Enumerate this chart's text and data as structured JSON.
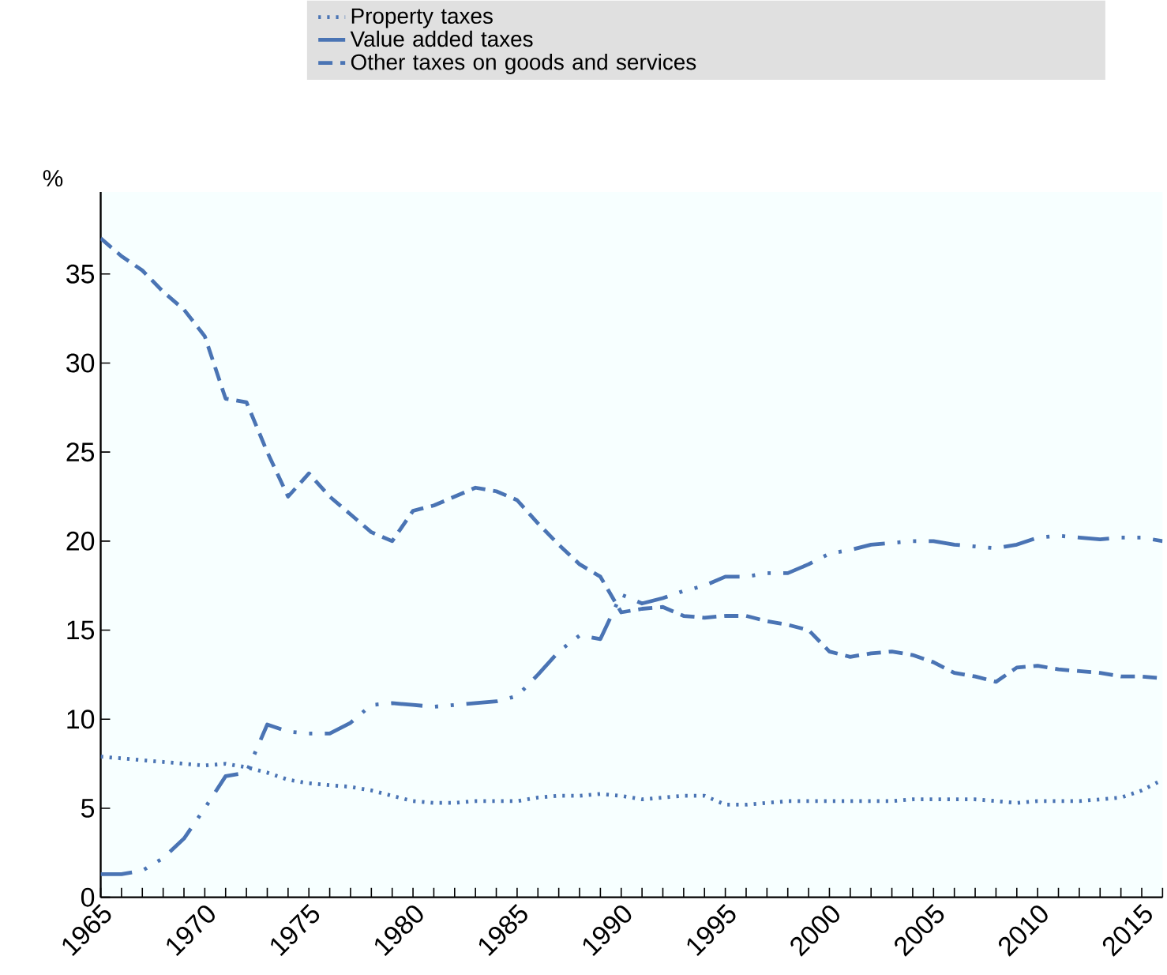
{
  "chart_data": {
    "type": "line",
    "ylabel": "%",
    "x": [
      1965,
      1966,
      1967,
      1968,
      1969,
      1970,
      1971,
      1972,
      1973,
      1974,
      1975,
      1976,
      1977,
      1978,
      1979,
      1980,
      1981,
      1982,
      1983,
      1984,
      1985,
      1986,
      1987,
      1988,
      1989,
      1990,
      1991,
      1992,
      1993,
      1994,
      1995,
      1996,
      1997,
      1998,
      1999,
      2000,
      2001,
      2002,
      2003,
      2004,
      2005,
      2006,
      2007,
      2008,
      2009,
      2010,
      2011,
      2012,
      2013,
      2014,
      2015,
      2016
    ],
    "series": [
      {
        "name": "Property taxes",
        "color": "#4a74b4",
        "line_style": "dotted",
        "values": [
          7.9,
          7.8,
          7.7,
          7.6,
          7.5,
          7.4,
          7.5,
          7.3,
          7.0,
          6.6,
          6.4,
          6.3,
          6.2,
          6.0,
          5.7,
          5.4,
          5.3,
          5.3,
          5.4,
          5.4,
          5.4,
          5.6,
          5.7,
          5.7,
          5.8,
          5.7,
          5.5,
          5.6,
          5.7,
          5.7,
          5.2,
          5.2,
          5.3,
          5.4,
          5.4,
          5.4,
          5.4,
          5.4,
          5.4,
          5.5,
          5.5,
          5.5,
          5.5,
          5.4,
          5.3,
          5.4,
          5.4,
          5.4,
          5.5,
          5.6,
          6.0,
          6.6
        ]
      },
      {
        "name": "Value added taxes",
        "color": "#4a74b4",
        "line_style": "dashdot",
        "values": [
          1.3,
          1.3,
          1.5,
          2.2,
          3.3,
          5.0,
          6.8,
          7.0,
          9.7,
          9.3,
          9.2,
          9.2,
          9.8,
          10.8,
          10.9,
          10.8,
          10.7,
          10.8,
          10.9,
          11.0,
          11.3,
          12.5,
          13.8,
          14.7,
          14.5,
          17.0,
          16.5,
          16.8,
          17.2,
          17.5,
          18.0,
          18.0,
          18.2,
          18.2,
          18.7,
          19.3,
          19.5,
          19.8,
          19.9,
          20.0,
          20.0,
          19.8,
          19.7,
          19.6,
          19.8,
          20.2,
          20.3,
          20.2,
          20.1,
          20.2,
          20.2,
          20.0
        ]
      },
      {
        "name": "Other taxes on goods and services",
        "color": "#4a74b4",
        "line_style": "dashed",
        "values": [
          37.0,
          36.0,
          35.2,
          34.0,
          33.0,
          31.5,
          28.0,
          27.8,
          25.0,
          22.5,
          23.8,
          22.5,
          21.5,
          20.5,
          20.0,
          21.7,
          22.0,
          22.5,
          23.0,
          22.8,
          22.3,
          21.0,
          19.8,
          18.7,
          18.0,
          16.0,
          16.2,
          16.3,
          15.8,
          15.7,
          15.8,
          15.8,
          15.5,
          15.3,
          15.0,
          13.8,
          13.5,
          13.7,
          13.8,
          13.6,
          13.2,
          12.6,
          12.4,
          12.1,
          12.9,
          13.0,
          12.8,
          12.7,
          12.6,
          12.4,
          12.4,
          12.3
        ]
      }
    ],
    "xlim": [
      1965,
      2016
    ],
    "ylim": [
      0,
      39.6
    ],
    "xticks": [
      {
        "value": 1965,
        "label": "1965"
      },
      {
        "value": 1966,
        "label": null
      },
      {
        "value": 1967,
        "label": null
      },
      {
        "value": 1968,
        "label": null
      },
      {
        "value": 1969,
        "label": null
      },
      {
        "value": 1970,
        "label": "1970"
      },
      {
        "value": 1971,
        "label": null
      },
      {
        "value": 1972,
        "label": null
      },
      {
        "value": 1973,
        "label": null
      },
      {
        "value": 1974,
        "label": null
      },
      {
        "value": 1975,
        "label": "1975"
      },
      {
        "value": 1976,
        "label": null
      },
      {
        "value": 1977,
        "label": null
      },
      {
        "value": 1978,
        "label": null
      },
      {
        "value": 1979,
        "label": null
      },
      {
        "value": 1980,
        "label": "1980"
      },
      {
        "value": 1981,
        "label": null
      },
      {
        "value": 1982,
        "label": null
      },
      {
        "value": 1983,
        "label": null
      },
      {
        "value": 1984,
        "label": null
      },
      {
        "value": 1985,
        "label": "1985"
      },
      {
        "value": 1986,
        "label": null
      },
      {
        "value": 1987,
        "label": null
      },
      {
        "value": 1988,
        "label": null
      },
      {
        "value": 1989,
        "label": null
      },
      {
        "value": 1990,
        "label": "1990"
      },
      {
        "value": 1991,
        "label": null
      },
      {
        "value": 1992,
        "label": null
      },
      {
        "value": 1993,
        "label": null
      },
      {
        "value": 1994,
        "label": null
      },
      {
        "value": 1995,
        "label": "1995"
      },
      {
        "value": 1996,
        "label": null
      },
      {
        "value": 1997,
        "label": null
      },
      {
        "value": 1998,
        "label": null
      },
      {
        "value": 1999,
        "label": null
      },
      {
        "value": 2000,
        "label": "2000"
      },
      {
        "value": 2001,
        "label": null
      },
      {
        "value": 2002,
        "label": null
      },
      {
        "value": 2003,
        "label": null
      },
      {
        "value": 2004,
        "label": null
      },
      {
        "value": 2005,
        "label": "2005"
      },
      {
        "value": 2006,
        "label": null
      },
      {
        "value": 2007,
        "label": null
      },
      {
        "value": 2008,
        "label": null
      },
      {
        "value": 2009,
        "label": null
      },
      {
        "value": 2010,
        "label": "2010"
      },
      {
        "value": 2011,
        "label": null
      },
      {
        "value": 2012,
        "label": null
      },
      {
        "value": 2013,
        "label": null
      },
      {
        "value": 2014,
        "label": null
      },
      {
        "value": 2015,
        "label": "2015"
      },
      {
        "value": 2016,
        "label": null
      }
    ],
    "yticks": [
      0,
      5,
      10,
      15,
      20,
      25,
      30,
      35
    ],
    "grid": false,
    "legend": "top",
    "marker": "none"
  }
}
